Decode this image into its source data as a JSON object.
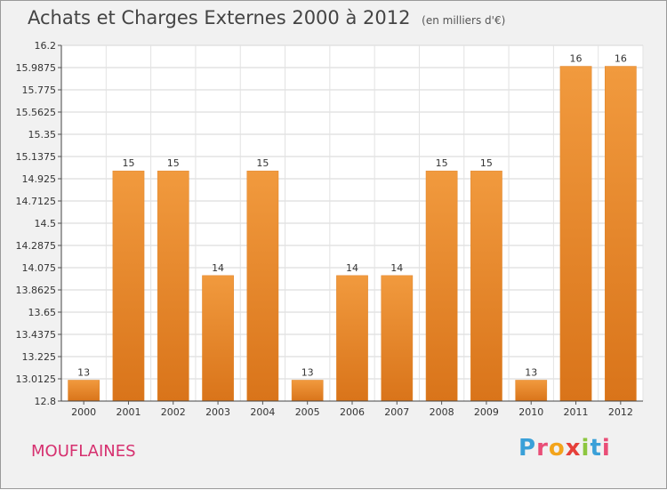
{
  "chart_data": {
    "type": "bar",
    "title": "Achats et Charges Externes 2000 à 2012",
    "subtitle": "(en milliers d'€)",
    "categories": [
      "2000",
      "2001",
      "2002",
      "2003",
      "2004",
      "2005",
      "2006",
      "2007",
      "2008",
      "2009",
      "2010",
      "2011",
      "2012"
    ],
    "values": [
      13,
      15,
      15,
      14,
      15,
      13,
      14,
      14,
      15,
      15,
      13,
      16,
      16
    ],
    "value_labels": [
      "13",
      "15",
      "15",
      "14",
      "15",
      "13",
      "14",
      "14",
      "15",
      "15",
      "13",
      "16",
      "16"
    ],
    "ylim": [
      12.8,
      16.2
    ],
    "yticks": [
      12.8,
      13.0125,
      13.225,
      13.4375,
      13.65,
      13.8625,
      14.075,
      14.2875,
      14.5,
      14.7125,
      14.925,
      15.1375,
      15.35,
      15.5625,
      15.775,
      15.9875,
      16.2
    ],
    "ytick_labels": [
      "12.8",
      "13.0125",
      "13.225",
      "13.4375",
      "13.65",
      "13.8625",
      "14.075",
      "14.2875",
      "14.5",
      "14.7125",
      "14.925",
      "15.1375",
      "15.35",
      "15.5625",
      "15.775",
      "15.9875",
      "16.2"
    ],
    "xlabel": "",
    "ylabel": "",
    "grid": true,
    "bar_color": "#f19a3e",
    "bar_color_dark": "#d9741a"
  },
  "commune": "MOUFLAINES",
  "logo_letters": [
    {
      "ch": "P",
      "color": "#3aa0d8"
    },
    {
      "ch": "r",
      "color": "#e94e77"
    },
    {
      "ch": "o",
      "color": "#f3a41b"
    },
    {
      "ch": "x",
      "color": "#e6403a"
    },
    {
      "ch": "i",
      "color": "#8cc63f"
    },
    {
      "ch": "t",
      "color": "#3aa0d8"
    },
    {
      "ch": "i",
      "color": "#e94e77"
    }
  ]
}
